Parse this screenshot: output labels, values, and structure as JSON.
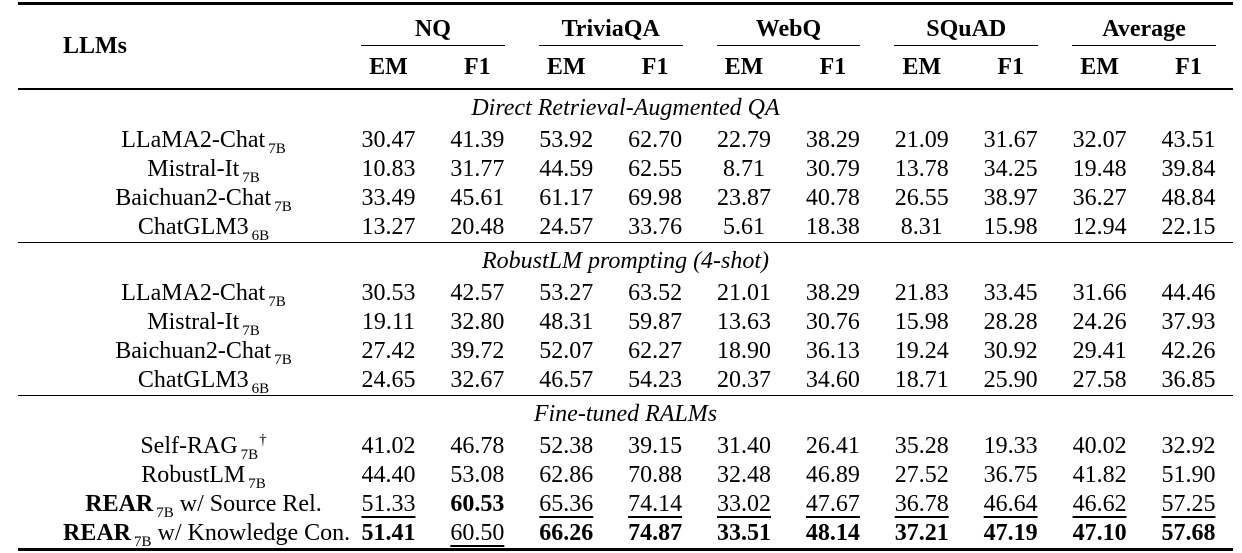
{
  "table": {
    "header": {
      "llms_label": "LLMs",
      "groups": [
        {
          "label": "NQ",
          "subcols": [
            "EM",
            "F1"
          ]
        },
        {
          "label": "TriviaQA",
          "subcols": [
            "EM",
            "F1"
          ]
        },
        {
          "label": "WebQ",
          "subcols": [
            "EM",
            "F1"
          ]
        },
        {
          "label": "SQuAD",
          "subcols": [
            "EM",
            "F1"
          ]
        },
        {
          "label": "Average",
          "subcols": [
            "EM",
            "F1"
          ]
        }
      ]
    },
    "sections": [
      {
        "title": "Direct Retrieval-Augmented QA",
        "rows": [
          {
            "name": "LLaMA2-Chat",
            "size": "7B",
            "dagger": "",
            "suffix": "",
            "name_bold": false,
            "values": [
              "30.47",
              "41.39",
              "53.92",
              "62.70",
              "22.79",
              "38.29",
              "21.09",
              "31.67",
              "32.07",
              "43.51"
            ],
            "styles": [
              "",
              "",
              "",
              "",
              "",
              "",
              "",
              "",
              "",
              ""
            ]
          },
          {
            "name": "Mistral-It",
            "size": "7B",
            "dagger": "",
            "suffix": "",
            "name_bold": false,
            "values": [
              "10.83",
              "31.77",
              "44.59",
              "62.55",
              "8.71",
              "30.79",
              "13.78",
              "34.25",
              "19.48",
              "39.84"
            ],
            "styles": [
              "",
              "",
              "",
              "",
              "",
              "",
              "",
              "",
              "",
              ""
            ]
          },
          {
            "name": "Baichuan2-Chat",
            "size": "7B",
            "dagger": "",
            "suffix": "",
            "name_bold": false,
            "values": [
              "33.49",
              "45.61",
              "61.17",
              "69.98",
              "23.87",
              "40.78",
              "26.55",
              "38.97",
              "36.27",
              "48.84"
            ],
            "styles": [
              "",
              "",
              "",
              "",
              "",
              "",
              "",
              "",
              "",
              ""
            ]
          },
          {
            "name": "ChatGLM3",
            "size": "6B",
            "dagger": "",
            "suffix": "",
            "name_bold": false,
            "values": [
              "13.27",
              "20.48",
              "24.57",
              "33.76",
              "5.61",
              "18.38",
              "8.31",
              "15.98",
              "12.94",
              "22.15"
            ],
            "styles": [
              "",
              "",
              "",
              "",
              "",
              "",
              "",
              "",
              "",
              ""
            ]
          }
        ]
      },
      {
        "title": "RobustLM prompting (4-shot)",
        "rows": [
          {
            "name": "LLaMA2-Chat",
            "size": "7B",
            "dagger": "",
            "suffix": "",
            "name_bold": false,
            "values": [
              "30.53",
              "42.57",
              "53.27",
              "63.52",
              "21.01",
              "38.29",
              "21.83",
              "33.45",
              "31.66",
              "44.46"
            ],
            "styles": [
              "",
              "",
              "",
              "",
              "",
              "",
              "",
              "",
              "",
              ""
            ]
          },
          {
            "name": "Mistral-It",
            "size": "7B",
            "dagger": "",
            "suffix": "",
            "name_bold": false,
            "values": [
              "19.11",
              "32.80",
              "48.31",
              "59.87",
              "13.63",
              "30.76",
              "15.98",
              "28.28",
              "24.26",
              "37.93"
            ],
            "styles": [
              "",
              "",
              "",
              "",
              "",
              "",
              "",
              "",
              "",
              ""
            ]
          },
          {
            "name": "Baichuan2-Chat",
            "size": "7B",
            "dagger": "",
            "suffix": "",
            "name_bold": false,
            "values": [
              "27.42",
              "39.72",
              "52.07",
              "62.27",
              "18.90",
              "36.13",
              "19.24",
              "30.92",
              "29.41",
              "42.26"
            ],
            "styles": [
              "",
              "",
              "",
              "",
              "",
              "",
              "",
              "",
              "",
              ""
            ]
          },
          {
            "name": "ChatGLM3",
            "size": "6B",
            "dagger": "",
            "suffix": "",
            "name_bold": false,
            "values": [
              "24.65",
              "32.67",
              "46.57",
              "54.23",
              "20.37",
              "34.60",
              "18.71",
              "25.90",
              "27.58",
              "36.85"
            ],
            "styles": [
              "",
              "",
              "",
              "",
              "",
              "",
              "",
              "",
              "",
              ""
            ]
          }
        ]
      },
      {
        "title": "Fine-tuned RALMs",
        "rows": [
          {
            "name": "Self-RAG",
            "size": "7B",
            "dagger": "†",
            "suffix": "",
            "name_bold": false,
            "values": [
              "41.02",
              "46.78",
              "52.38",
              "39.15",
              "31.40",
              "26.41",
              "35.28",
              "19.33",
              "40.02",
              "32.92"
            ],
            "styles": [
              "",
              "",
              "",
              "",
              "",
              "",
              "",
              "",
              "",
              ""
            ]
          },
          {
            "name": "RobustLM",
            "size": "7B",
            "dagger": "",
            "suffix": "",
            "name_bold": false,
            "values": [
              "44.40",
              "53.08",
              "62.86",
              "70.88",
              "32.48",
              "46.89",
              "27.52",
              "36.75",
              "41.82",
              "51.90"
            ],
            "styles": [
              "",
              "",
              "",
              "",
              "",
              "",
              "",
              "",
              "",
              ""
            ]
          },
          {
            "name": "REAR",
            "size": "7B",
            "dagger": "",
            "suffix": "w/ Source Rel.",
            "name_bold": true,
            "values": [
              "51.33",
              "60.53",
              "65.36",
              "74.14",
              "33.02",
              "47.67",
              "36.78",
              "46.64",
              "46.62",
              "57.25"
            ],
            "styles": [
              "u",
              "b",
              "u",
              "u",
              "u",
              "u",
              "u",
              "u",
              "u",
              "u"
            ]
          },
          {
            "name": "REAR",
            "size": "7B",
            "dagger": "",
            "suffix": "w/ Knowledge Con.",
            "name_bold": true,
            "values": [
              "51.41",
              "60.50",
              "66.26",
              "74.87",
              "33.51",
              "48.14",
              "37.21",
              "47.19",
              "47.10",
              "57.68"
            ],
            "styles": [
              "b",
              "u",
              "b",
              "b",
              "b",
              "b",
              "b",
              "b",
              "b",
              "b"
            ]
          }
        ]
      }
    ]
  }
}
